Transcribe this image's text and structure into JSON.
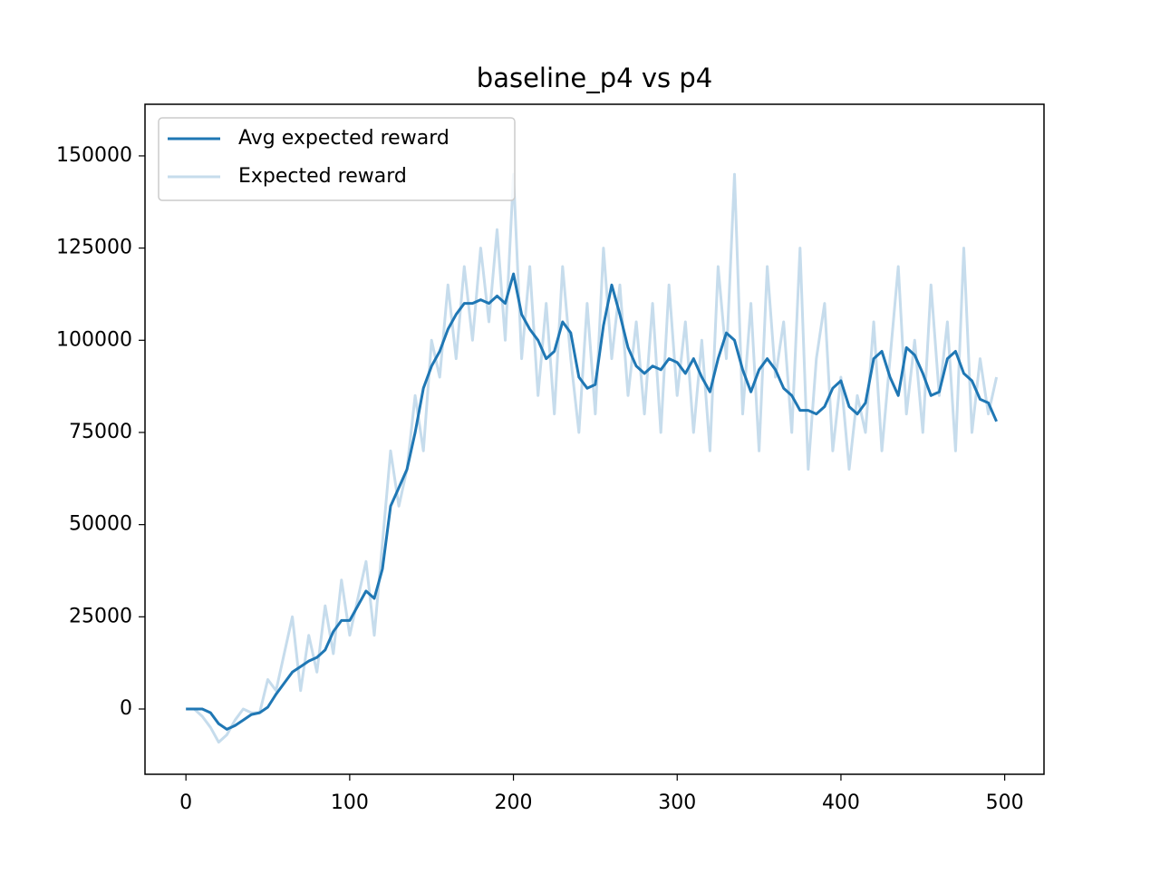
{
  "chart_data": {
    "type": "line",
    "title": "baseline_p4 vs p4",
    "x": [
      0,
      5,
      10,
      15,
      20,
      25,
      30,
      35,
      40,
      45,
      50,
      55,
      60,
      65,
      70,
      75,
      80,
      85,
      90,
      95,
      100,
      105,
      110,
      115,
      120,
      125,
      130,
      135,
      140,
      145,
      150,
      155,
      160,
      165,
      170,
      175,
      180,
      185,
      190,
      195,
      200,
      205,
      210,
      215,
      220,
      225,
      230,
      235,
      240,
      245,
      250,
      255,
      260,
      265,
      270,
      275,
      280,
      285,
      290,
      295,
      300,
      305,
      310,
      315,
      320,
      325,
      330,
      335,
      340,
      345,
      350,
      355,
      360,
      365,
      370,
      375,
      380,
      385,
      390,
      395,
      400,
      405,
      410,
      415,
      420,
      425,
      430,
      435,
      440,
      445,
      450,
      455,
      460,
      465,
      470,
      475,
      480,
      485,
      490,
      495
    ],
    "series": [
      {
        "name": "Avg expected reward",
        "color": "#1f77b4",
        "values": [
          0,
          0,
          0,
          -1000,
          -4000,
          -5500,
          -4500,
          -3000,
          -1500,
          -1000,
          500,
          4000,
          7000,
          10000,
          11500,
          13000,
          14000,
          16000,
          21000,
          24000,
          24000,
          28000,
          32000,
          30000,
          38000,
          55000,
          60000,
          65000,
          75000,
          87000,
          93000,
          97000,
          103000,
          107000,
          110000,
          110000,
          111000,
          110000,
          112000,
          110000,
          118000,
          107000,
          103000,
          100000,
          95000,
          97000,
          105000,
          102000,
          90000,
          87000,
          88000,
          104000,
          115000,
          107000,
          98000,
          93000,
          91000,
          93000,
          92000,
          95000,
          94000,
          91000,
          95000,
          90000,
          86000,
          95000,
          102000,
          100000,
          92000,
          86000,
          92000,
          95000,
          92000,
          87000,
          85000,
          81000,
          81000,
          80000,
          82000,
          87000,
          89000,
          82000,
          80000,
          83000,
          95000,
          97000,
          90000,
          85000,
          98000,
          96000,
          91000,
          85000,
          86000,
          95000,
          97000,
          91000,
          89000,
          84000,
          83000,
          78000
        ]
      },
      {
        "name": "Expected reward",
        "color": "#c6dcec",
        "values": [
          0,
          0,
          -2000,
          -5000,
          -9000,
          -7000,
          -3000,
          0,
          -1000,
          -1000,
          8000,
          5000,
          15000,
          25000,
          5000,
          20000,
          10000,
          28000,
          15000,
          35000,
          20000,
          30000,
          40000,
          20000,
          45000,
          70000,
          55000,
          65000,
          85000,
          70000,
          100000,
          90000,
          115000,
          95000,
          120000,
          100000,
          125000,
          105000,
          130000,
          100000,
          145000,
          95000,
          120000,
          85000,
          110000,
          80000,
          120000,
          95000,
          75000,
          110000,
          80000,
          125000,
          95000,
          115000,
          85000,
          105000,
          80000,
          110000,
          75000,
          115000,
          85000,
          105000,
          75000,
          100000,
          70000,
          120000,
          95000,
          145000,
          80000,
          110000,
          70000,
          120000,
          90000,
          105000,
          75000,
          125000,
          65000,
          95000,
          110000,
          70000,
          90000,
          65000,
          85000,
          75000,
          105000,
          70000,
          95000,
          120000,
          80000,
          100000,
          75000,
          115000,
          85000,
          105000,
          70000,
          125000,
          75000,
          95000,
          80000,
          90000
        ]
      }
    ],
    "xlim": [
      -25,
      524
    ],
    "ylim": [
      -17700,
      164000
    ],
    "xticks": [
      0,
      100,
      200,
      300,
      400,
      500
    ],
    "yticks": [
      0,
      25000,
      50000,
      75000,
      100000,
      125000,
      150000
    ],
    "legend": "upper left"
  }
}
